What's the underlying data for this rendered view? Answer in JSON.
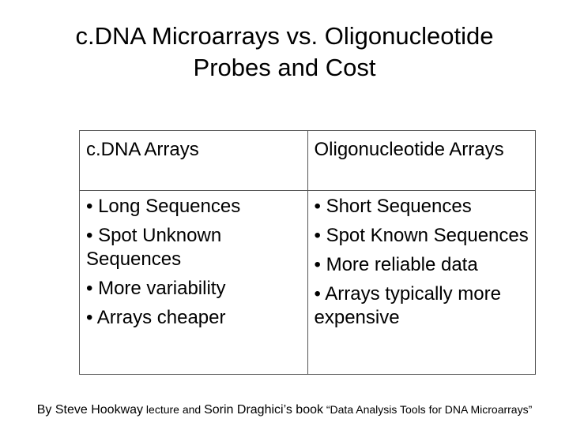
{
  "title": {
    "line1": "c.DNA Microarrays vs. Oligonucleotide",
    "line2": "Probes and Cost"
  },
  "table": {
    "left_header": "c.DNA Arrays",
    "right_header": "Oligonucleotide Arrays",
    "left_items": [
      "• Long Sequences",
      "• Spot Unknown Sequences",
      "• More variability",
      " • Arrays cheaper"
    ],
    "right_items": [
      "• Short Sequences",
      "• Spot Known Sequences",
      "• More reliable data",
      "• Arrays typically more expensive"
    ]
  },
  "footer": {
    "by": "By Steve Hookway",
    "lecture_and": " lecture and ",
    "author2": "Sorin Draghici’s book",
    "book_title": " “Data Analysis Tools for DNA Microarrays”"
  }
}
